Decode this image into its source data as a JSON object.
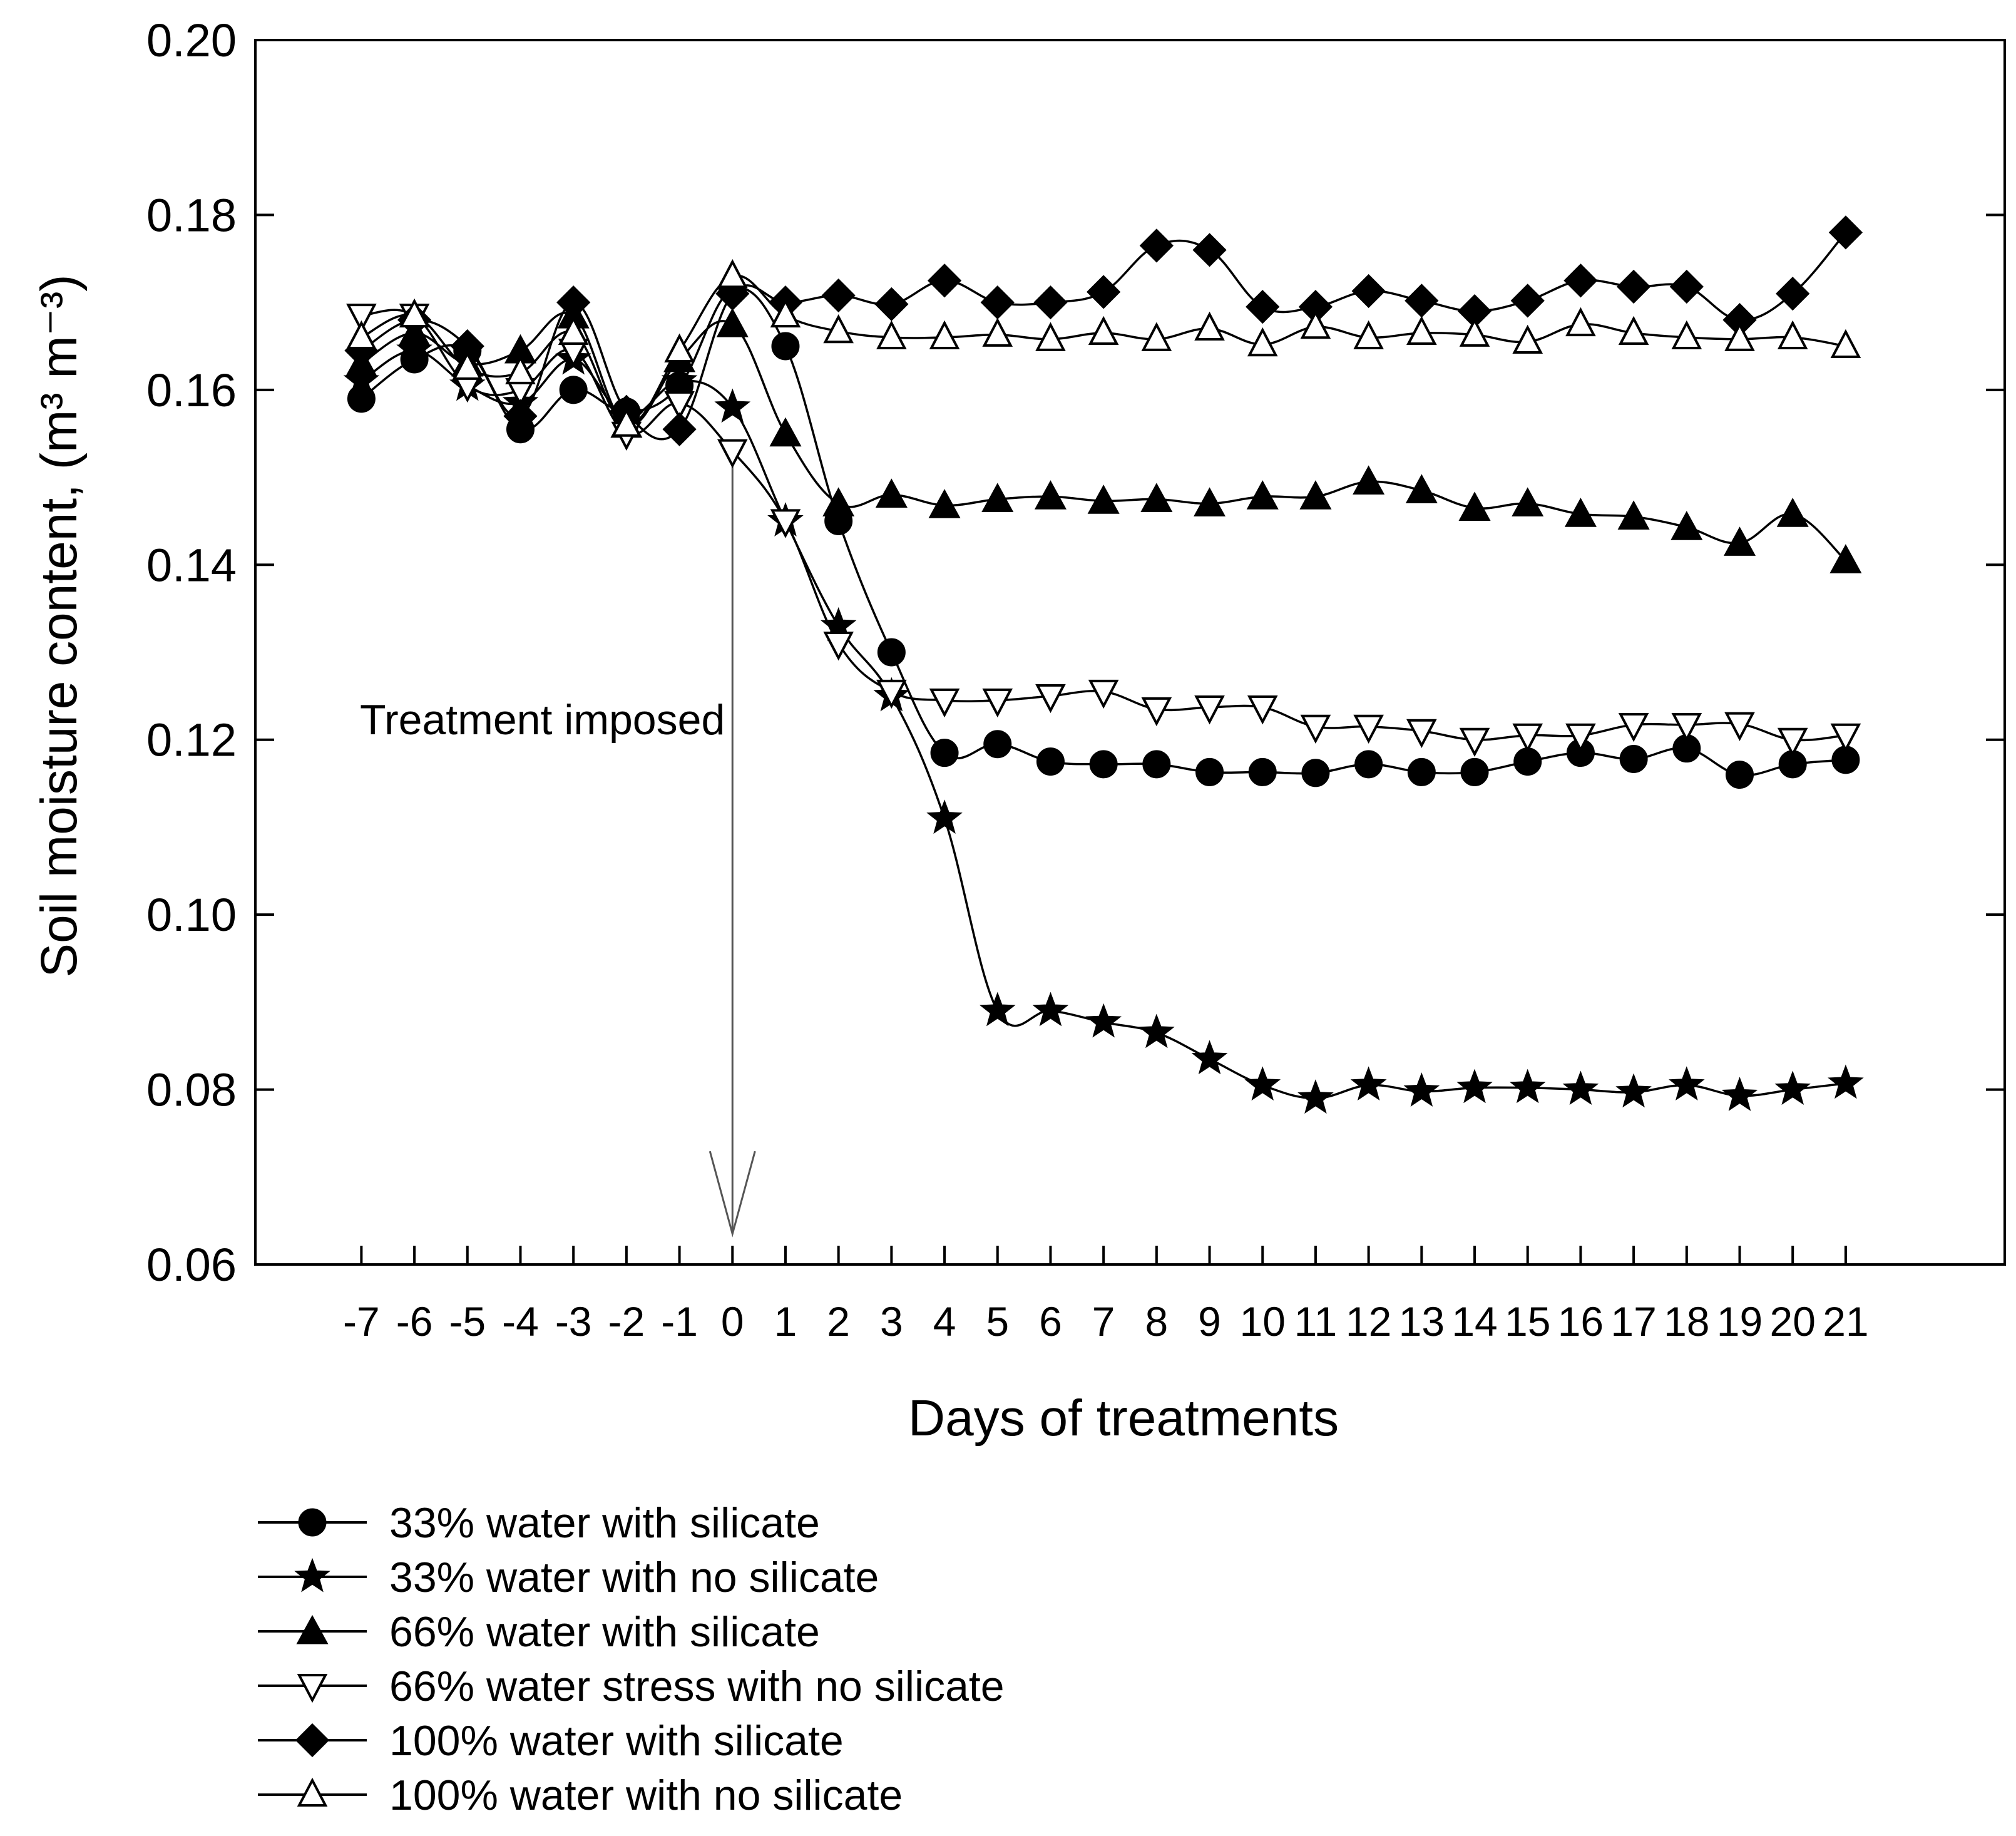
{
  "chart_data": {
    "type": "line",
    "title": "",
    "xlabel": "Days of treatments",
    "ylabel": "Soil moisture content, (m³ m⁻³)",
    "ylim": [
      0.06,
      0.2
    ],
    "xlim": [
      -9,
      24
    ],
    "yticks": [
      "0.06",
      "0.08",
      "0.10",
      "0.12",
      "0.14",
      "0.16",
      "0.18",
      "0.20"
    ],
    "x": [
      -7,
      -6,
      -5,
      -4,
      -3,
      -2,
      -1,
      0,
      1,
      2,
      3,
      4,
      5,
      6,
      7,
      8,
      9,
      10,
      11,
      12,
      13,
      14,
      15,
      16,
      17,
      18,
      19,
      20,
      21
    ],
    "x_labels": [
      "-7",
      "-6",
      "-5",
      "-4",
      "-3",
      "-2",
      "-1",
      "0",
      "1",
      "2",
      "3",
      "4",
      "5",
      "6",
      "7",
      "8",
      "9",
      "10",
      "11",
      "12",
      "13",
      "14",
      "15",
      "16",
      "17",
      "18",
      "19",
      "20",
      "21"
    ],
    "series": [
      {
        "name": "33% water with silicate",
        "marker": "circle-filled",
        "values": [
          0.159,
          0.1635,
          0.1645,
          0.1555,
          0.16,
          0.1575,
          0.1605,
          0.1715,
          0.165,
          0.145,
          0.13,
          0.1185,
          0.1195,
          0.1175,
          0.1172,
          0.1172,
          0.1163,
          0.1163,
          0.1162,
          0.1172,
          0.1163,
          0.1163,
          0.1175,
          0.1185,
          0.1178,
          0.119,
          0.116,
          0.1172,
          0.1177
        ]
      },
      {
        "name": "33% water with no silicate",
        "marker": "star-filled",
        "values": [
          0.161,
          0.1645,
          0.1605,
          0.1585,
          0.1635,
          0.157,
          0.161,
          0.158,
          0.145,
          0.133,
          0.125,
          0.111,
          0.089,
          0.089,
          0.0877,
          0.0865,
          0.0835,
          0.0805,
          0.079,
          0.0805,
          0.0798,
          0.0802,
          0.0802,
          0.08,
          0.0797,
          0.0805,
          0.0793,
          0.08,
          0.0807
        ]
      },
      {
        "name": "66% water with silicate",
        "marker": "triangle-up-filled",
        "values": [
          0.163,
          0.1665,
          0.163,
          0.1645,
          0.1685,
          0.156,
          0.1635,
          0.1675,
          0.155,
          0.147,
          0.148,
          0.1468,
          0.1475,
          0.1478,
          0.1473,
          0.1475,
          0.147,
          0.1478,
          0.1478,
          0.1495,
          0.1485,
          0.1465,
          0.147,
          0.1458,
          0.1455,
          0.1443,
          0.1425,
          0.1458,
          0.1405
        ]
      },
      {
        "name": "66% water stress with no silicate",
        "marker": "triangle-down-open",
        "values": [
          0.1685,
          0.1685,
          0.1605,
          0.16,
          0.1645,
          0.155,
          0.1585,
          0.153,
          0.145,
          0.131,
          0.1255,
          0.1245,
          0.1245,
          0.125,
          0.1255,
          0.1235,
          0.1237,
          0.1237,
          0.1215,
          0.1215,
          0.121,
          0.12,
          0.1205,
          0.1205,
          0.1217,
          0.1217,
          0.1218,
          0.12,
          0.1205
        ]
      },
      {
        "name": "100% water with silicate",
        "marker": "diamond-filled",
        "values": [
          0.1645,
          0.168,
          0.165,
          0.157,
          0.17,
          0.1575,
          0.1555,
          0.171,
          0.17,
          0.1708,
          0.1698,
          0.1725,
          0.17,
          0.17,
          0.1712,
          0.1765,
          0.176,
          0.1695,
          0.1695,
          0.1713,
          0.1702,
          0.169,
          0.1702,
          0.1725,
          0.1718,
          0.1718,
          0.168,
          0.171,
          0.178
        ]
      },
      {
        "name": "100% water with no silicate",
        "marker": "triangle-up-open",
        "values": [
          0.166,
          0.1685,
          0.1625,
          0.162,
          0.1665,
          0.156,
          0.1645,
          0.173,
          0.1685,
          0.1667,
          0.166,
          0.166,
          0.1663,
          0.1658,
          0.1665,
          0.1658,
          0.167,
          0.1652,
          0.1672,
          0.166,
          0.1665,
          0.1663,
          0.1655,
          0.1675,
          0.1665,
          0.166,
          0.1658,
          0.166,
          0.165
        ]
      }
    ],
    "annotations": [
      {
        "text": "Treatment imposed",
        "arrow_from": [
          0,
          0.152
        ],
        "arrow_to": [
          0,
          0.0635
        ]
      }
    ],
    "legend": "bottom",
    "grid": false
  }
}
